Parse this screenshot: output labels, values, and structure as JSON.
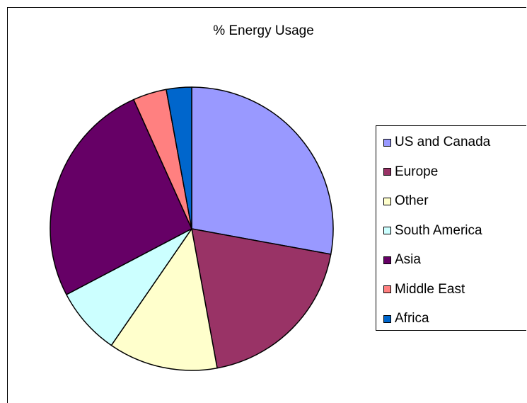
{
  "chart_data": {
    "type": "pie",
    "title": "% Energy Usage",
    "categories": [
      "US and Canada",
      "Europe",
      "Other",
      "South America",
      "Asia",
      "Middle East",
      "Africa"
    ],
    "values": [
      29,
      20,
      13,
      8,
      27,
      4,
      3
    ],
    "colors": [
      "#9999ff",
      "#993366",
      "#ffffcc",
      "#ccffff",
      "#660066",
      "#ff8080",
      "#0066cc"
    ],
    "legend_position": "right"
  }
}
